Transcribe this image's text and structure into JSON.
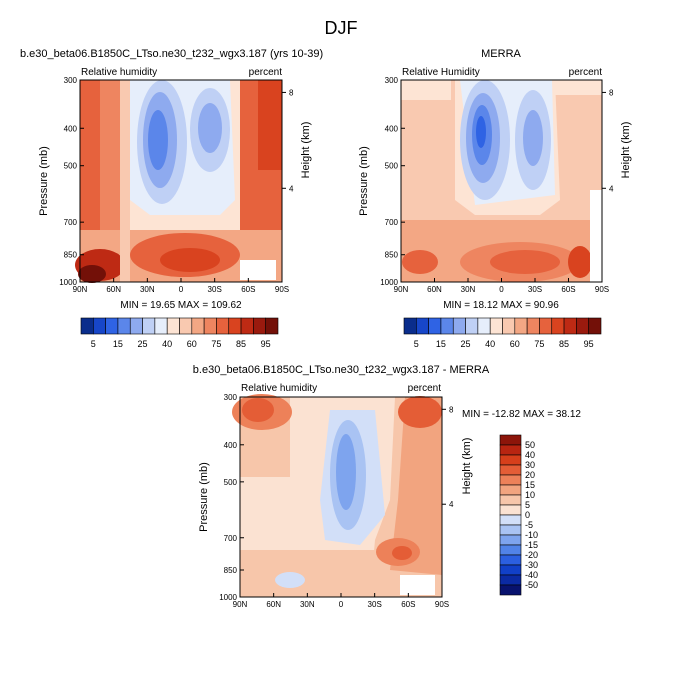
{
  "main_title": "DJF",
  "colors": {
    "abs": [
      "#0a2d8c",
      "#1746c9",
      "#2f63e4",
      "#5b86ea",
      "#8eaaef",
      "#bfd0f5",
      "#e6eefb",
      "#fde4d4",
      "#f9c9b0",
      "#f3a784",
      "#ee8560",
      "#e6623d",
      "#d9431f",
      "#be2a14",
      "#9a1a0e",
      "#731008"
    ],
    "diff": [
      "#08126e",
      "#0b2aa3",
      "#1140c8",
      "#2b5fe0",
      "#5183e8",
      "#7ea4ee",
      "#a9c3f3",
      "#d2dff8",
      "#fbe2d2",
      "#f7c6aa",
      "#f2a47f",
      "#ed8159",
      "#e45d36",
      "#d63f1b",
      "#b82511",
      "#8c150a"
    ]
  },
  "chart_data": [
    {
      "type": "contour",
      "title": "b.e30_beta06.B1850C_LTso.ne30_t232_wgx3.187 (yrs 10-39)",
      "left_label": "Relative humidity",
      "right_label": "percent",
      "ylabel": "Pressure (mb)",
      "y2label": "Height (km)",
      "x_ticks": [
        "90N",
        "60N",
        "30N",
        "0",
        "30S",
        "60S",
        "90S"
      ],
      "y_ticks": [
        "300",
        "400",
        "500",
        "700",
        "850",
        "1000"
      ],
      "y2_ticks": [
        "8",
        "4"
      ],
      "stats": "MIN = 19.65  MAX = 109.62"
    },
    {
      "type": "contour",
      "title": "MERRA",
      "left_label": "Relative Humidity",
      "right_label": "percent",
      "ylabel": "Pressure (mb)",
      "y2label": "Height (km)",
      "x_ticks": [
        "90N",
        "60N",
        "30N",
        "0",
        "30S",
        "60S",
        "90S"
      ],
      "y_ticks": [
        "300",
        "400",
        "500",
        "700",
        "850",
        "1000"
      ],
      "y2_ticks": [
        "8",
        "4"
      ],
      "stats": "MIN = 18.12  MAX = 90.96"
    },
    {
      "type": "contour",
      "title": "b.e30_beta06.B1850C_LTso.ne30_t232_wgx3.187 - MERRA",
      "left_label": "Relative humidity",
      "right_label": "percent",
      "ylabel": "Pressure (mb)",
      "y2label": "Height (km)",
      "x_ticks": [
        "90N",
        "60N",
        "30N",
        "0",
        "30S",
        "60S",
        "90S"
      ],
      "y_ticks": [
        "300",
        "400",
        "500",
        "700",
        "850",
        "1000"
      ],
      "y2_ticks": [
        "8",
        "4"
      ],
      "stats": "MIN = -12.82  MAX = 38.12"
    }
  ],
  "colorbar_abs": {
    "labels": [
      "5",
      "15",
      "25",
      "40",
      "60",
      "75",
      "85",
      "95"
    ]
  },
  "colorbar_diff": {
    "labels": [
      "50",
      "40",
      "30",
      "20",
      "15",
      "10",
      "5",
      "0",
      "-5",
      "-10",
      "-15",
      "-20",
      "-30",
      "-40",
      "-50"
    ]
  }
}
